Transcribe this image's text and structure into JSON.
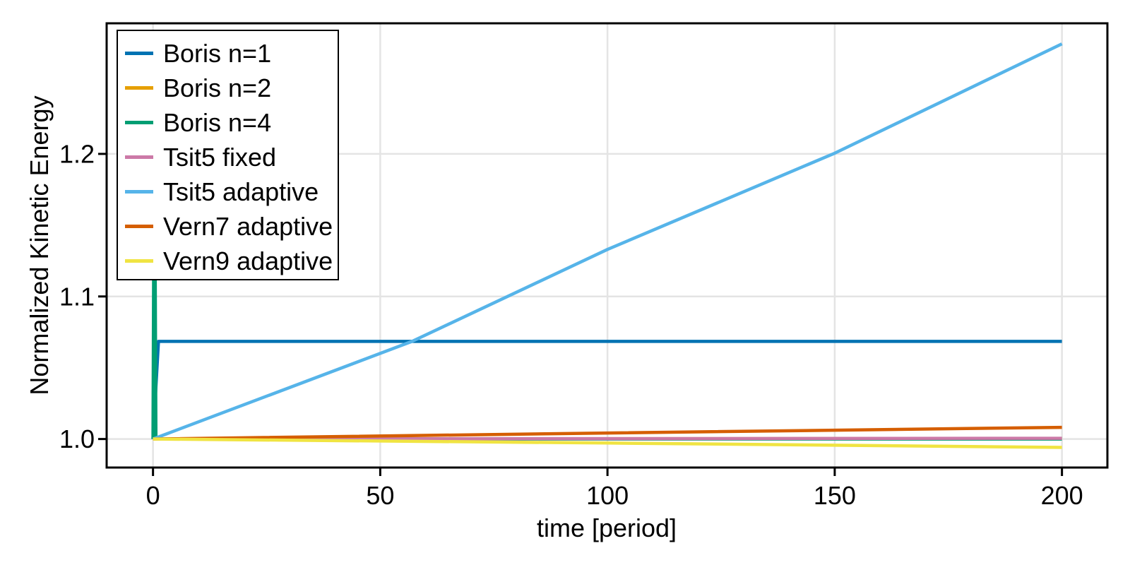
{
  "chart_data": {
    "type": "line",
    "title": "",
    "xlabel": "time [period]",
    "ylabel": "Normalized Kinetic Energy",
    "xlim": [
      -10.2,
      210.0
    ],
    "ylim": [
      0.98,
      1.2916
    ],
    "xticks": [
      0,
      50,
      100,
      150,
      200
    ],
    "xtick_labels": [
      "0",
      "50",
      "100",
      "150",
      "200"
    ],
    "yticks": [
      1.0,
      1.1,
      1.2
    ],
    "ytick_labels": [
      "1.0",
      "1.1",
      "1.2"
    ],
    "grid": true,
    "legend_position": "top-left",
    "series": [
      {
        "name": "Boris n=1",
        "color": "#0072B2",
        "points": [
          [
            0,
            1.0
          ],
          [
            1.2,
            1.0685
          ],
          [
            200,
            1.0685
          ]
        ]
      },
      {
        "name": "Boris n=2",
        "color": "#E69F00",
        "points": [
          [
            0,
            1.0
          ],
          [
            200,
            1.0004
          ]
        ]
      },
      {
        "name": "Boris n=4",
        "color": "#009E73",
        "points": [
          [
            0,
            1.0
          ],
          [
            0.3,
            1.252
          ],
          [
            0.65,
            1.0
          ],
          [
            200,
            1.0
          ]
        ]
      },
      {
        "name": "Tsit5 fixed",
        "color": "#CC79A7",
        "points": [
          [
            0,
            1.0
          ],
          [
            200,
            1.0005
          ]
        ]
      },
      {
        "name": "Tsit5 adaptive",
        "color": "#56B4E9",
        "points": [
          [
            0,
            1.0
          ],
          [
            57,
            1.0685
          ],
          [
            100,
            1.133
          ],
          [
            150,
            1.2005
          ],
          [
            200,
            1.2772
          ]
        ]
      },
      {
        "name": "Vern7 adaptive",
        "color": "#D55E00",
        "points": [
          [
            0,
            1.0
          ],
          [
            100,
            1.0042
          ],
          [
            200,
            1.0082
          ]
        ]
      },
      {
        "name": "Vern9 adaptive",
        "color": "#F0E442",
        "points": [
          [
            0,
            1.0
          ],
          [
            100,
            0.9972
          ],
          [
            200,
            0.9941
          ]
        ]
      }
    ],
    "colors": {
      "background": "#ffffff",
      "frame": "#000000",
      "grid": "#e4e4e4",
      "text": "#000000"
    }
  }
}
